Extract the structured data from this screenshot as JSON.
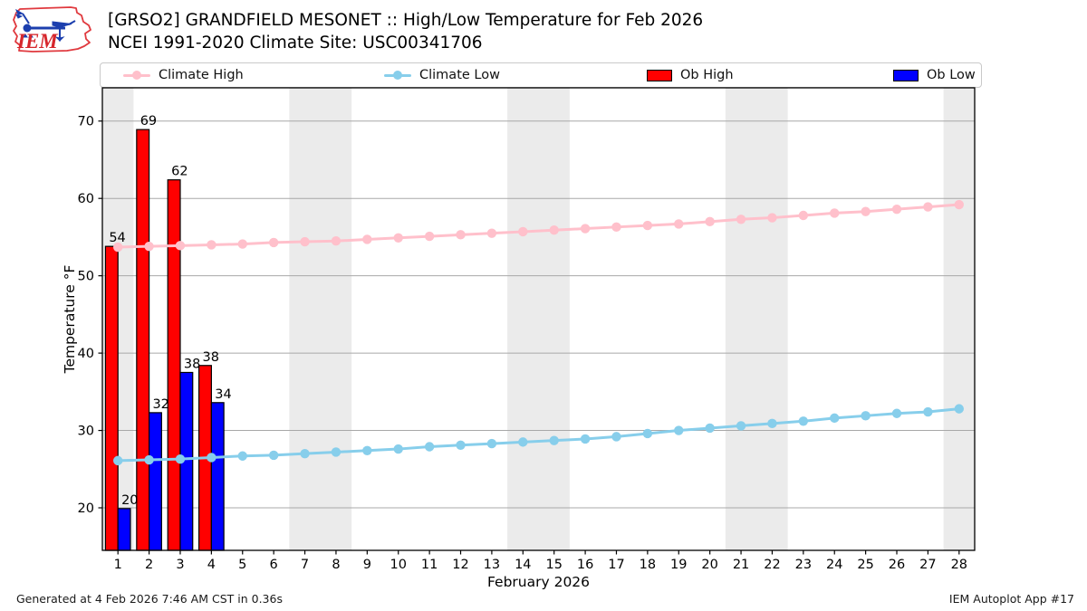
{
  "header": {
    "logo_text": "IEM",
    "title_line1": "[GRSO2] GRANDFIELD MESONET :: High/Low Temperature for Feb 2026",
    "title_line2": "NCEI 1991-2020 Climate Site: USC00341706"
  },
  "legend": {
    "items": [
      {
        "label": "Climate High",
        "type": "line",
        "color": "#FFC0CB"
      },
      {
        "label": "Climate Low",
        "type": "line",
        "color": "#87CEEB"
      },
      {
        "label": "Ob High",
        "type": "patch",
        "color": "#FF0000"
      },
      {
        "label": "Ob Low",
        "type": "patch",
        "color": "#0000FF"
      }
    ]
  },
  "chart_data": {
    "type": "bar",
    "xlabel": "February 2026",
    "ylabel": "Temperature °F",
    "xlim": [
      0.5,
      28.5
    ],
    "ylim": [
      14.5,
      74.3
    ],
    "yticks": [
      20,
      30,
      40,
      50,
      60,
      70
    ],
    "days": [
      1,
      2,
      3,
      4,
      5,
      6,
      7,
      8,
      9,
      10,
      11,
      12,
      13,
      14,
      15,
      16,
      17,
      18,
      19,
      20,
      21,
      22,
      23,
      24,
      25,
      26,
      27,
      28
    ],
    "weekend_bands": [
      [
        0.5,
        1.5
      ],
      [
        6.5,
        8.5
      ],
      [
        13.5,
        15.5
      ],
      [
        20.5,
        22.5
      ],
      [
        27.5,
        28.5
      ]
    ],
    "band_color": "#ebebeb",
    "grid_color": "#a8a8a8",
    "series": [
      {
        "name": "Climate High",
        "type": "line",
        "color": "#FFC0CB",
        "values": [
          53.7,
          53.8,
          53.9,
          54.0,
          54.1,
          54.3,
          54.4,
          54.5,
          54.7,
          54.9,
          55.1,
          55.3,
          55.5,
          55.7,
          55.9,
          56.1,
          56.3,
          56.5,
          56.7,
          57.0,
          57.3,
          57.5,
          57.8,
          58.1,
          58.3,
          58.6,
          58.9,
          59.2
        ]
      },
      {
        "name": "Climate Low",
        "type": "line",
        "color": "#87CEEB",
        "values": [
          26.1,
          26.2,
          26.3,
          26.5,
          26.7,
          26.8,
          27.0,
          27.2,
          27.4,
          27.6,
          27.9,
          28.1,
          28.3,
          28.5,
          28.7,
          28.9,
          29.2,
          29.6,
          30.0,
          30.3,
          30.6,
          30.9,
          31.2,
          31.6,
          31.9,
          32.2,
          32.4,
          32.8
        ]
      },
      {
        "name": "Ob High",
        "type": "bar",
        "color": "#FF0000",
        "side": "left",
        "days": [
          1,
          2,
          3,
          4
        ],
        "values": [
          53.8,
          68.9,
          62.4,
          38.4
        ],
        "labels": [
          "54",
          "69",
          "62",
          "38"
        ]
      },
      {
        "name": "Ob Low",
        "type": "bar",
        "color": "#0000FF",
        "side": "right",
        "days": [
          1,
          2,
          3,
          4
        ],
        "values": [
          19.9,
          32.3,
          37.5,
          33.6
        ],
        "labels": [
          "20",
          "32",
          "38",
          "34"
        ]
      }
    ]
  },
  "footer": {
    "left": "Generated at 4 Feb 2026 7:46 AM CST in 0.36s",
    "right": "IEM Autoplot App #17"
  }
}
